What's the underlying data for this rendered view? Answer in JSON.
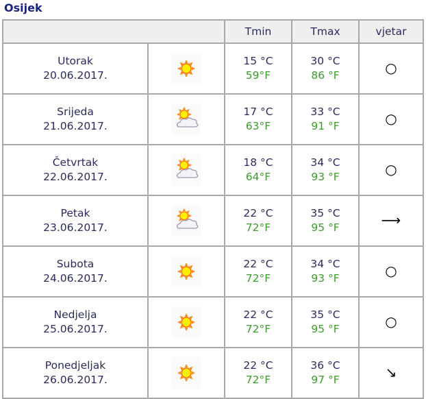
{
  "city": "Osijek",
  "headers": {
    "tmin": "Tmin",
    "tmax": "Tmax",
    "wind": "vjetar"
  },
  "colors": {
    "fahrenheit": "#3c9a2c",
    "text": "#2b2b5e"
  },
  "days": [
    {
      "day": "Utorak",
      "date": "20.06.2017.",
      "icon": "sun",
      "tmin_c": "15 °C",
      "tmin_f": "59°F",
      "tmax_c": "30 °C",
      "tmax_f": "86 °F",
      "wind": "○",
      "wind_icon": "calm-circle-icon"
    },
    {
      "day": "Srijeda",
      "date": "21.06.2017.",
      "icon": "sun-cloud",
      "tmin_c": "17 °C",
      "tmin_f": "63°F",
      "tmax_c": "33 °C",
      "tmax_f": "91 °F",
      "wind": "○",
      "wind_icon": "calm-circle-icon"
    },
    {
      "day": "Četvrtak",
      "date": "22.06.2017.",
      "icon": "sun-cloud",
      "tmin_c": "18 °C",
      "tmin_f": "64°F",
      "tmax_c": "34 °C",
      "tmax_f": "93 °F",
      "wind": "○",
      "wind_icon": "calm-circle-icon"
    },
    {
      "day": "Petak",
      "date": "23.06.2017.",
      "icon": "sun-cloud",
      "tmin_c": "22 °C",
      "tmin_f": "72°F",
      "tmax_c": "35 °C",
      "tmax_f": "95 °F",
      "wind": "⟶",
      "wind_icon": "arrow-right-icon"
    },
    {
      "day": "Subota",
      "date": "24.06.2017.",
      "icon": "sun",
      "tmin_c": "22 °C",
      "tmin_f": "72°F",
      "tmax_c": "34 °C",
      "tmax_f": "93 °F",
      "wind": "○",
      "wind_icon": "calm-circle-icon"
    },
    {
      "day": "Nedjelja",
      "date": "25.06.2017.",
      "icon": "sun",
      "tmin_c": "22 °C",
      "tmin_f": "72°F",
      "tmax_c": "35 °C",
      "tmax_f": "95 °F",
      "wind": "○",
      "wind_icon": "calm-circle-icon"
    },
    {
      "day": "Ponedjeljak",
      "date": "26.06.2017.",
      "icon": "sun",
      "tmin_c": "22 °C",
      "tmin_f": "72°F",
      "tmax_c": "36 °C",
      "tmax_f": "97 °F",
      "wind": "↘",
      "wind_icon": "arrow-down-right-icon"
    }
  ]
}
